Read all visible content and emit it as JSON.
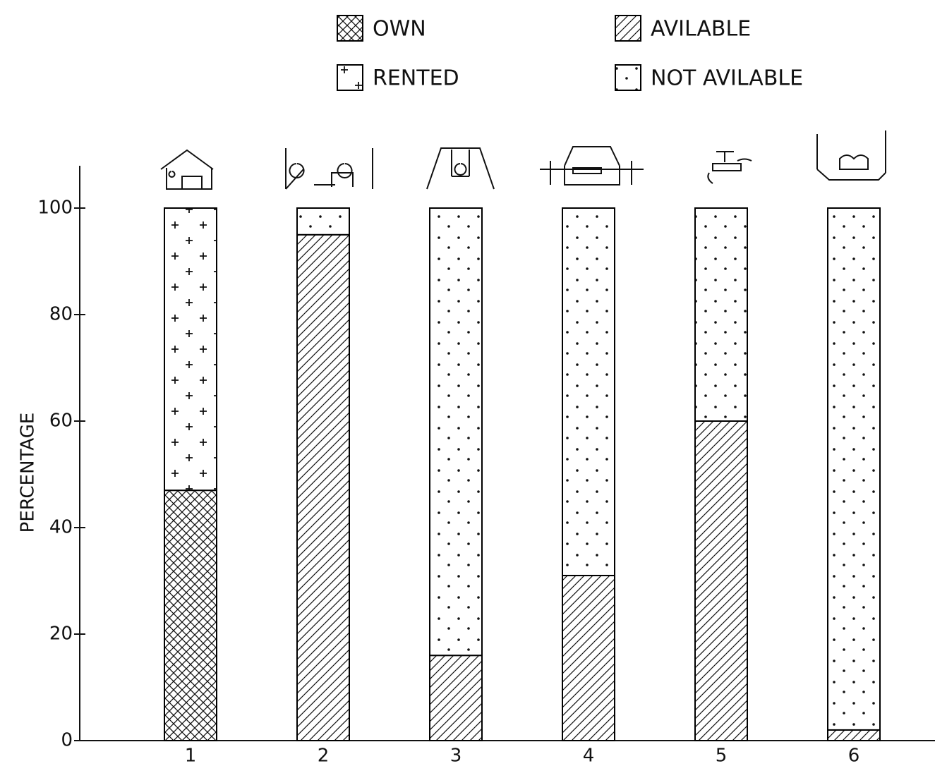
{
  "chart_data": {
    "type": "stacked_bar",
    "y_label": "PERCENTAGE",
    "categories": [
      "1",
      "2",
      "3",
      "4",
      "5",
      "6"
    ],
    "series": [
      {
        "name": "OWN",
        "color": "#000000",
        "pattern": "crosshatch",
        "values": [
          47,
          null,
          null,
          null,
          null,
          null
        ]
      },
      {
        "name": "RENTED",
        "color": "#000000",
        "pattern": "plus",
        "values": [
          53,
          null,
          null,
          null,
          null,
          null
        ]
      },
      {
        "name": "AVILABLE",
        "color": "#000000",
        "pattern": "diagonal",
        "values": [
          null,
          95,
          16,
          31,
          60,
          2
        ]
      },
      {
        "name": "NOT AVILABLE",
        "color": "#000000",
        "pattern": "dots",
        "values": [
          null,
          5,
          84,
          69,
          40,
          98
        ]
      }
    ],
    "ylim": [
      0,
      100
    ],
    "yticks": [
      0,
      20,
      40,
      60,
      80,
      100
    ],
    "grid": false
  }
}
